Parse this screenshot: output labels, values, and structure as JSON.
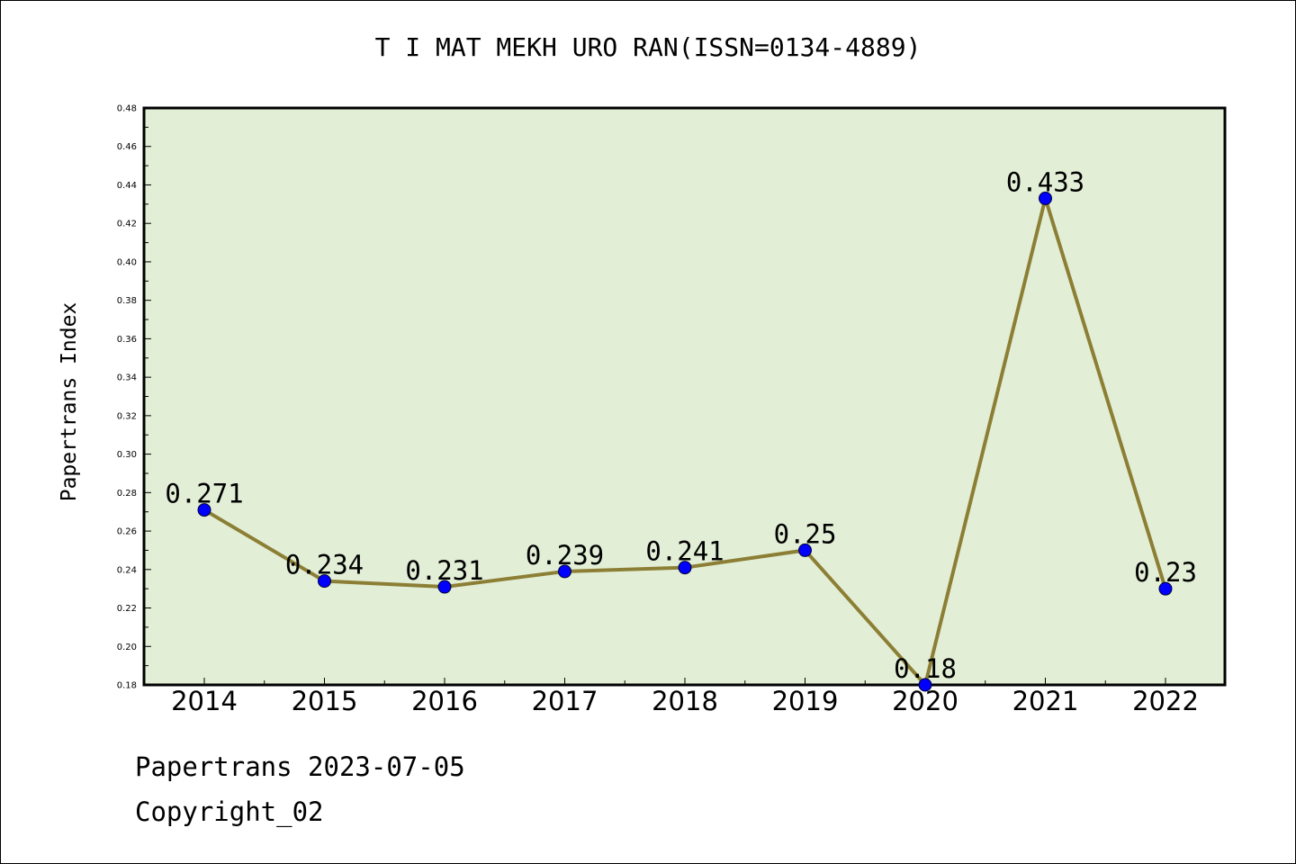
{
  "chart_data": {
    "type": "line",
    "title": "T I MAT MEKH URO RAN(ISSN=0134-4889)",
    "xlabel": "",
    "ylabel": "Papertrans Index",
    "categories": [
      "2014",
      "2015",
      "2016",
      "2017",
      "2018",
      "2019",
      "2020",
      "2021",
      "2022"
    ],
    "series": [
      {
        "values": [
          0.271,
          0.234,
          0.231,
          0.239,
          0.241,
          0.25,
          0.18,
          0.433,
          0.23
        ]
      }
    ],
    "data_labels": [
      "0.271",
      "0.234",
      "0.231",
      "0.239",
      "0.241",
      "0.25",
      "0.18",
      "0.433",
      "0.23"
    ],
    "ylim": [
      0.18,
      0.48
    ],
    "yticks": [
      "0.18",
      "0.20",
      "0.22",
      "0.24",
      "0.26",
      "0.28",
      "0.30",
      "0.32",
      "0.34",
      "0.36",
      "0.38",
      "0.40",
      "0.42",
      "0.44",
      "0.46",
      "0.48"
    ],
    "grid": false,
    "colors": {
      "plot_background": "#e2efd6",
      "line": "#8c7f35",
      "marker": "#0000ff"
    }
  },
  "footer": {
    "date_line": "Papertrans 2023-07-05",
    "copyright": "Copyright_02"
  }
}
